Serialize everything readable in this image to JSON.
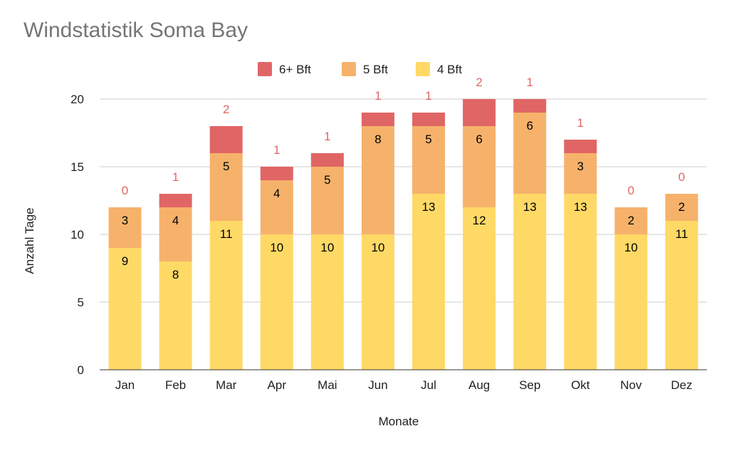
{
  "chart_data": {
    "type": "bar",
    "stacked": true,
    "title": "Windstatistik Soma Bay",
    "xlabel": "Monate",
    "ylabel": "Anzahl Tage",
    "ylim": [
      0,
      20
    ],
    "yticks": [
      0,
      5,
      10,
      15,
      20
    ],
    "grid": true,
    "legend_position": "top",
    "categories": [
      "Jan",
      "Feb",
      "Mar",
      "Apr",
      "Mai",
      "Jun",
      "Jul",
      "Aug",
      "Sep",
      "Okt",
      "Nov",
      "Dez"
    ],
    "series": [
      {
        "name": "4 Bft",
        "color": "#ffd966",
        "label_color": "#000000",
        "values": [
          9,
          8,
          11,
          10,
          10,
          10,
          13,
          12,
          13,
          13,
          10,
          11
        ]
      },
      {
        "name": "5 Bft",
        "color": "#f6b26b",
        "label_color": "#000000",
        "values": [
          3,
          4,
          5,
          4,
          5,
          8,
          5,
          6,
          6,
          3,
          2,
          2
        ]
      },
      {
        "name": "6+ Bft",
        "color": "#e06666",
        "label_color": "#e06666",
        "values": [
          0,
          1,
          2,
          1,
          1,
          1,
          1,
          2,
          1,
          1,
          0,
          0
        ]
      }
    ],
    "legend_order": [
      "6+ Bft",
      "5 Bft",
      "4 Bft"
    ]
  }
}
